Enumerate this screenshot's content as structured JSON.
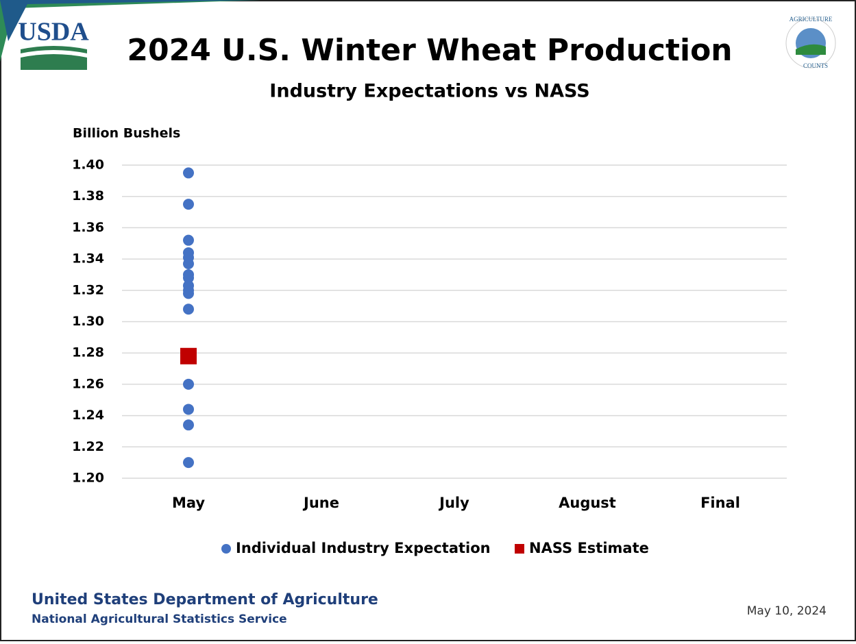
{
  "header": {
    "logo_left": "USDA",
    "logo_right_top": "AGRICULTURE",
    "logo_right_bottom": "COUNTS"
  },
  "chart_data": {
    "type": "scatter",
    "title": "2024 U.S. Winter Wheat Production",
    "subtitle": "Industry Expectations vs NASS",
    "y_label": "Billion Bushels",
    "categories": [
      "May",
      "June",
      "July",
      "August",
      "Final"
    ],
    "ylim": [
      1.2,
      1.4
    ],
    "yticks": [
      {
        "value": 1.2,
        "label": "1.20"
      },
      {
        "value": 1.22,
        "label": "1.22"
      },
      {
        "value": 1.24,
        "label": "1.24"
      },
      {
        "value": 1.26,
        "label": "1.26"
      },
      {
        "value": 1.28,
        "label": "1.28"
      },
      {
        "value": 1.3,
        "label": "1.30"
      },
      {
        "value": 1.32,
        "label": "1.32"
      },
      {
        "value": 1.34,
        "label": "1.34"
      },
      {
        "value": 1.36,
        "label": "1.36"
      },
      {
        "value": 1.38,
        "label": "1.38"
      },
      {
        "value": 1.4,
        "label": "1.40"
      }
    ],
    "grid": true,
    "legend": "bottom",
    "series": [
      {
        "name": "Individual Industry Expectation",
        "color": "#4472c4",
        "marker": "circle",
        "x": [
          "May",
          "May",
          "May",
          "May",
          "May",
          "May",
          "May",
          "May",
          "May",
          "May",
          "May",
          "May",
          "May",
          "May",
          "May",
          "May"
        ],
        "values": [
          1.395,
          1.375,
          1.352,
          1.344,
          1.341,
          1.337,
          1.33,
          1.328,
          1.323,
          1.32,
          1.318,
          1.308,
          1.26,
          1.244,
          1.234,
          1.21
        ]
      },
      {
        "name": "NASS Estimate",
        "color": "#c00000",
        "marker": "square",
        "x": [
          "May"
        ],
        "values": [
          1.278
        ]
      }
    ]
  },
  "footer": {
    "org": "United States Department of Agriculture",
    "service": "National Agricultural Statistics Service",
    "date": "May 10, 2024"
  }
}
